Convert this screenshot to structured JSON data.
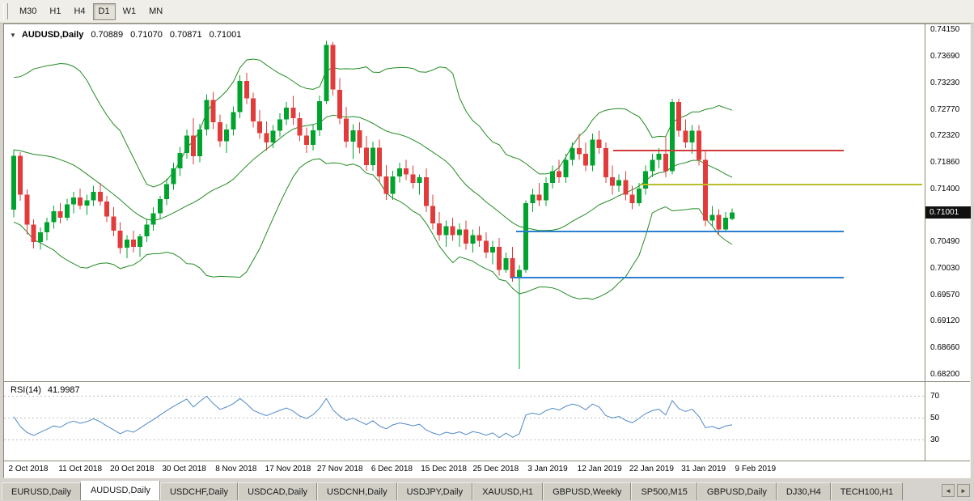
{
  "window": {
    "toolbar": {
      "timeframes": [
        "M30",
        "H1",
        "H4",
        "D1",
        "W1",
        "MN"
      ],
      "active": "D1"
    },
    "chart": {
      "title": "AUDUSD,Daily",
      "marker_icon": "▼",
      "ohlc": {
        "open": "0.70889",
        "high": "0.71070",
        "low": "0.70871",
        "close": "0.71001"
      },
      "current_price": "0.71001",
      "price_axis_labels": [
        "0.74150",
        "0.73690",
        "0.73230",
        "0.72770",
        "0.72320",
        "0.71860",
        "0.71400",
        "0.70940",
        "0.70490",
        "0.70030",
        "0.69570",
        "0.69120",
        "0.68660",
        "0.68200"
      ],
      "date_axis_labels": [
        "2 Oct 2018",
        "11 Oct 2018",
        "20 Oct 2018",
        "30 Oct 2018",
        "8 Nov 2018",
        "17 Nov 2018",
        "27 Nov 2018",
        "6 Dec 2018",
        "15 Dec 2018",
        "25 Dec 2018",
        "3 Jan 2019",
        "12 Jan 2019",
        "22 Jan 2019",
        "31 Jan 2019",
        "9 Feb 2019"
      ]
    },
    "rsi": {
      "label": "RSI(14)",
      "value": "41.9987",
      "levels": [
        "70",
        "50",
        "30"
      ]
    },
    "tabs": {
      "items": [
        "EURUSD,Daily",
        "AUDUSD,Daily",
        "USDCHF,Daily",
        "USDCAD,Daily",
        "USDCNH,Daily",
        "USDJPY,Daily",
        "XAUUSD,H1",
        "GBPUSD,Weekly",
        "SP500,M15",
        "GBPUSD,Daily",
        "DJ30,H4",
        "TECH100,H1"
      ],
      "active_index": 1
    },
    "tab_scroll": {
      "left": "◄",
      "right": "►"
    }
  },
  "chart_data": {
    "type": "candlestick",
    "symbol": "AUDUSD",
    "timeframe": "Daily",
    "axis_range": {
      "top": 0.74248,
      "bottom": 0.68089
    },
    "colors": {
      "up": "#00a32e",
      "down": "#e23b3b",
      "background": "#ffffff"
    },
    "bollinger": {
      "period": 20,
      "deviation": 2,
      "color": "#228b22"
    },
    "rsi": {
      "period": 14,
      "current": 41.9987,
      "color": "#5089c9",
      "levels": [
        70,
        50,
        30
      ]
    },
    "hlines": [
      {
        "price": 0.7207,
        "x1": 0.662,
        "x2": 0.912,
        "color": "#d23b3b",
        "width": 2
      },
      {
        "price": 0.7148,
        "x1": 0.692,
        "x2": 0.997,
        "color": "#b8bf2a",
        "width": 2
      },
      {
        "price": 0.7067,
        "x1": 0.556,
        "x2": 0.912,
        "color": "#2b7fd0",
        "width": 2
      },
      {
        "price": 0.6988,
        "x1": 0.551,
        "x2": 0.912,
        "color": "#2b7fd0",
        "width": 2
      }
    ],
    "indicator_warmup_closes": [
      0.7168,
      0.7138,
      0.7112,
      0.709,
      0.7118,
      0.7146,
      0.7172,
      0.7198,
      0.7228,
      0.7258,
      0.7288,
      0.7308,
      0.7288,
      0.7268,
      0.7248,
      0.7228,
      0.7256,
      0.7238,
      0.7218
    ],
    "candles": [
      [
        0.7105,
        0.7208,
        0.7092,
        0.7198
      ],
      [
        0.7198,
        0.7204,
        0.712,
        0.7131
      ],
      [
        0.7131,
        0.714,
        0.7062,
        0.7079
      ],
      [
        0.7079,
        0.7088,
        0.7038,
        0.7049
      ],
      [
        0.7049,
        0.7074,
        0.7036,
        0.7066
      ],
      [
        0.7066,
        0.7091,
        0.7052,
        0.7083
      ],
      [
        0.7083,
        0.7112,
        0.7072,
        0.7102
      ],
      [
        0.7102,
        0.7116,
        0.7081,
        0.7091
      ],
      [
        0.7091,
        0.7124,
        0.7086,
        0.7114
      ],
      [
        0.7114,
        0.7136,
        0.7099,
        0.7126
      ],
      [
        0.7126,
        0.7141,
        0.7106,
        0.7112
      ],
      [
        0.7112,
        0.7131,
        0.7096,
        0.7121
      ],
      [
        0.7121,
        0.7146,
        0.7111,
        0.7136
      ],
      [
        0.7136,
        0.7151,
        0.7112,
        0.7119
      ],
      [
        0.7119,
        0.7129,
        0.7083,
        0.7093
      ],
      [
        0.7093,
        0.7109,
        0.7059,
        0.7069
      ],
      [
        0.7069,
        0.7083,
        0.7029,
        0.7039
      ],
      [
        0.7039,
        0.7061,
        0.7021,
        0.7053
      ],
      [
        0.7053,
        0.7069,
        0.7031,
        0.7041
      ],
      [
        0.7041,
        0.7063,
        0.7023,
        0.7059
      ],
      [
        0.7059,
        0.7089,
        0.7049,
        0.7079
      ],
      [
        0.7079,
        0.7109,
        0.7069,
        0.7099
      ],
      [
        0.7099,
        0.7129,
        0.7089,
        0.7123
      ],
      [
        0.7123,
        0.7159,
        0.7113,
        0.7149
      ],
      [
        0.7149,
        0.7186,
        0.7139,
        0.7176
      ],
      [
        0.7176,
        0.7213,
        0.7163,
        0.7203
      ],
      [
        0.7203,
        0.7243,
        0.7193,
        0.7233
      ],
      [
        0.7233,
        0.7263,
        0.7183,
        0.7197
      ],
      [
        0.7197,
        0.7253,
        0.7187,
        0.7243
      ],
      [
        0.7243,
        0.7304,
        0.7233,
        0.7294
      ],
      [
        0.7294,
        0.7308,
        0.7244,
        0.7256
      ],
      [
        0.7256,
        0.7269,
        0.7213,
        0.7223
      ],
      [
        0.7223,
        0.7253,
        0.7203,
        0.7243
      ],
      [
        0.7243,
        0.7283,
        0.7233,
        0.7273
      ],
      [
        0.7273,
        0.7337,
        0.7263,
        0.7327
      ],
      [
        0.7327,
        0.7341,
        0.7287,
        0.7297
      ],
      [
        0.7297,
        0.7307,
        0.7247,
        0.7257
      ],
      [
        0.7257,
        0.7277,
        0.7227,
        0.7237
      ],
      [
        0.7237,
        0.7257,
        0.7207,
        0.7221
      ],
      [
        0.7221,
        0.7251,
        0.7211,
        0.7241
      ],
      [
        0.7241,
        0.7271,
        0.7231,
        0.7261
      ],
      [
        0.7261,
        0.7291,
        0.7251,
        0.7281
      ],
      [
        0.7281,
        0.7301,
        0.7251,
        0.7263
      ],
      [
        0.7263,
        0.7273,
        0.7223,
        0.7233
      ],
      [
        0.7233,
        0.7247,
        0.7203,
        0.7217
      ],
      [
        0.7217,
        0.7252,
        0.7207,
        0.7242
      ],
      [
        0.7242,
        0.7302,
        0.7232,
        0.7292
      ],
      [
        0.7292,
        0.7396,
        0.7287,
        0.7389
      ],
      [
        0.7389,
        0.7394,
        0.7302,
        0.7312
      ],
      [
        0.7312,
        0.7332,
        0.7252,
        0.7262
      ],
      [
        0.7262,
        0.7282,
        0.7212,
        0.7222
      ],
      [
        0.7222,
        0.7252,
        0.7192,
        0.7242
      ],
      [
        0.7242,
        0.7256,
        0.7202,
        0.7212
      ],
      [
        0.7212,
        0.7232,
        0.7172,
        0.7182
      ],
      [
        0.7182,
        0.7222,
        0.7172,
        0.7212
      ],
      [
        0.7212,
        0.7226,
        0.7152,
        0.7162
      ],
      [
        0.7162,
        0.7182,
        0.7122,
        0.7132
      ],
      [
        0.7132,
        0.7172,
        0.7122,
        0.7162
      ],
      [
        0.7162,
        0.7186,
        0.7152,
        0.7176
      ],
      [
        0.7176,
        0.7191,
        0.7156,
        0.7166
      ],
      [
        0.7166,
        0.7181,
        0.7141,
        0.7151
      ],
      [
        0.7151,
        0.7166,
        0.7131,
        0.7161
      ],
      [
        0.7161,
        0.7176,
        0.7101,
        0.7111
      ],
      [
        0.7111,
        0.7131,
        0.7071,
        0.7081
      ],
      [
        0.7081,
        0.7101,
        0.7051,
        0.7061
      ],
      [
        0.7061,
        0.7086,
        0.7041,
        0.7076
      ],
      [
        0.7076,
        0.7091,
        0.7051,
        0.7061
      ],
      [
        0.7061,
        0.7081,
        0.7041,
        0.7071
      ],
      [
        0.7071,
        0.7086,
        0.7036,
        0.7046
      ],
      [
        0.7046,
        0.7071,
        0.7031,
        0.7061
      ],
      [
        0.7061,
        0.7076,
        0.7041,
        0.7051
      ],
      [
        0.7051,
        0.7066,
        0.7021,
        0.7031
      ],
      [
        0.7031,
        0.7051,
        0.7011,
        0.7041
      ],
      [
        0.7041,
        0.7056,
        0.6991,
        0.7001
      ],
      [
        0.7001,
        0.7031,
        0.6996,
        0.7021
      ],
      [
        0.7021,
        0.7041,
        0.6981,
        0.6986
      ],
      [
        0.6986,
        0.7009,
        0.683,
        0.7001
      ],
      [
        0.7001,
        0.7121,
        0.6996,
        0.7116
      ],
      [
        0.7116,
        0.7141,
        0.7101,
        0.7131
      ],
      [
        0.7131,
        0.7151,
        0.7111,
        0.7121
      ],
      [
        0.7121,
        0.7161,
        0.7111,
        0.7151
      ],
      [
        0.7151,
        0.7181,
        0.7141,
        0.7171
      ],
      [
        0.7171,
        0.7191,
        0.7151,
        0.7161
      ],
      [
        0.7161,
        0.7201,
        0.7151,
        0.7191
      ],
      [
        0.7191,
        0.7221,
        0.7181,
        0.7211
      ],
      [
        0.7211,
        0.7236,
        0.7191,
        0.7201
      ],
      [
        0.7201,
        0.7221,
        0.7171,
        0.7181
      ],
      [
        0.7181,
        0.7236,
        0.7171,
        0.7226
      ],
      [
        0.7226,
        0.7241,
        0.7201,
        0.7211
      ],
      [
        0.7211,
        0.7221,
        0.7151,
        0.7161
      ],
      [
        0.7161,
        0.7181,
        0.7131,
        0.7146
      ],
      [
        0.7146,
        0.7166,
        0.7136,
        0.7156
      ],
      [
        0.7156,
        0.7171,
        0.7121,
        0.7131
      ],
      [
        0.7131,
        0.7146,
        0.7106,
        0.7116
      ],
      [
        0.7116,
        0.7151,
        0.7111,
        0.7141
      ],
      [
        0.7141,
        0.7181,
        0.7131,
        0.7171
      ],
      [
        0.7171,
        0.7201,
        0.7161,
        0.7191
      ],
      [
        0.7191,
        0.7211,
        0.7176,
        0.7201
      ],
      [
        0.7201,
        0.7231,
        0.7161,
        0.7171
      ],
      [
        0.7171,
        0.7296,
        0.7166,
        0.7291
      ],
      [
        0.7291,
        0.7296,
        0.7231,
        0.7241
      ],
      [
        0.7241,
        0.7261,
        0.7211,
        0.7221
      ],
      [
        0.7221,
        0.7251,
        0.7201,
        0.7241
      ],
      [
        0.7241,
        0.7251,
        0.7181,
        0.7191
      ],
      [
        0.7191,
        0.7206,
        0.7076,
        0.7086
      ],
      [
        0.7086,
        0.7111,
        0.7076,
        0.7096
      ],
      [
        0.7096,
        0.7106,
        0.7061,
        0.7071
      ],
      [
        0.7071,
        0.7101,
        0.7066,
        0.7091
      ],
      [
        0.70889,
        0.7107,
        0.70871,
        0.71001
      ]
    ]
  }
}
